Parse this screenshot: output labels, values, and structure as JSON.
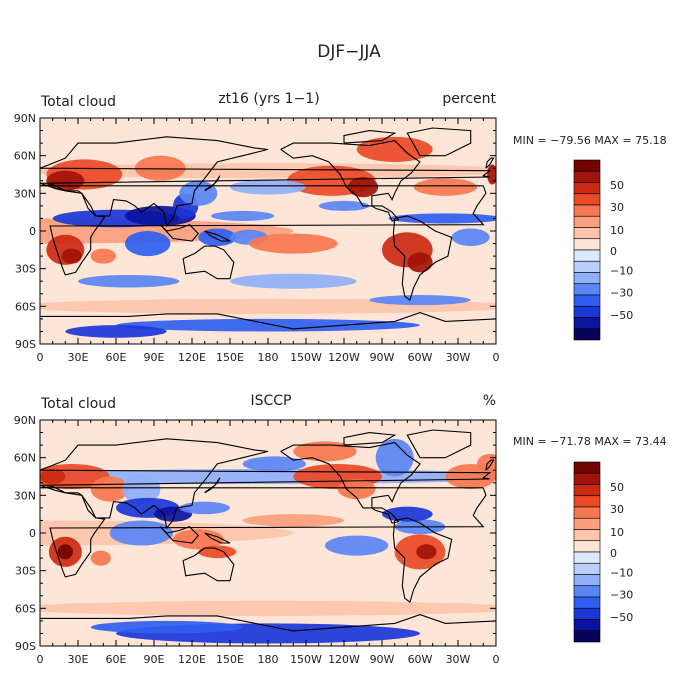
{
  "figure": {
    "title": "DJF−JJA"
  },
  "chart_data": [
    {
      "type": "heatmap",
      "panel_label_left": "Total cloud",
      "panel_label_center": "zt16 (yrs 1−1)",
      "panel_label_right": "percent",
      "stats_text": "MIN = −79.56 MAX =  75.18",
      "stats": {
        "min": -79.56,
        "max": 75.18
      },
      "x_ticks": [
        "0",
        "30E",
        "60E",
        "90E",
        "120E",
        "150E",
        "180",
        "150W",
        "120W",
        "90W",
        "60W",
        "30W",
        "0"
      ],
      "y_ticks": [
        "90N",
        "60N",
        "30N",
        "0",
        "30S",
        "60S",
        "90S"
      ],
      "xlim": [
        0,
        360
      ],
      "ylim": [
        -90,
        90
      ],
      "colorbar_ticks": [
        "50",
        "30",
        "10",
        "0",
        "−10",
        "−30",
        "−50"
      ],
      "colorbar_levels": [
        -70,
        -60,
        -50,
        -40,
        -30,
        -20,
        -10,
        -5,
        0,
        5,
        10,
        20,
        30,
        40,
        50,
        60,
        70
      ]
    },
    {
      "type": "heatmap",
      "panel_label_left": "Total cloud",
      "panel_label_center": "ISCCP",
      "panel_label_right": "%",
      "stats_text": "MIN = −71.78 MAX =  73.44",
      "stats": {
        "min": -71.78,
        "max": 73.44
      },
      "x_ticks": [
        "0",
        "30E",
        "60E",
        "90E",
        "120E",
        "150E",
        "180",
        "150W",
        "120W",
        "90W",
        "60W",
        "30W",
        "0"
      ],
      "y_ticks": [
        "90N",
        "60N",
        "30N",
        "0",
        "30S",
        "60S",
        "90S"
      ],
      "xlim": [
        0,
        360
      ],
      "ylim": [
        -90,
        90
      ],
      "colorbar_ticks": [
        "50",
        "30",
        "10",
        "0",
        "−10",
        "−30",
        "−50"
      ],
      "colorbar_levels": [
        -70,
        -60,
        -50,
        -40,
        -30,
        -20,
        -10,
        -5,
        0,
        5,
        10,
        20,
        30,
        40,
        50,
        60,
        70
      ]
    }
  ],
  "colors": {
    "palette": [
      "#08045c",
      "#0b14a0",
      "#1a37d8",
      "#2f5ef0",
      "#5a86f5",
      "#8fb0f8",
      "#b9cffa",
      "#dce8fc",
      "#fde6d7",
      "#fcc6ad",
      "#fb9f7e",
      "#f77750",
      "#eb4a26",
      "#cc2a12",
      "#a11408",
      "#720402"
    ],
    "land_outline": "#000000"
  }
}
